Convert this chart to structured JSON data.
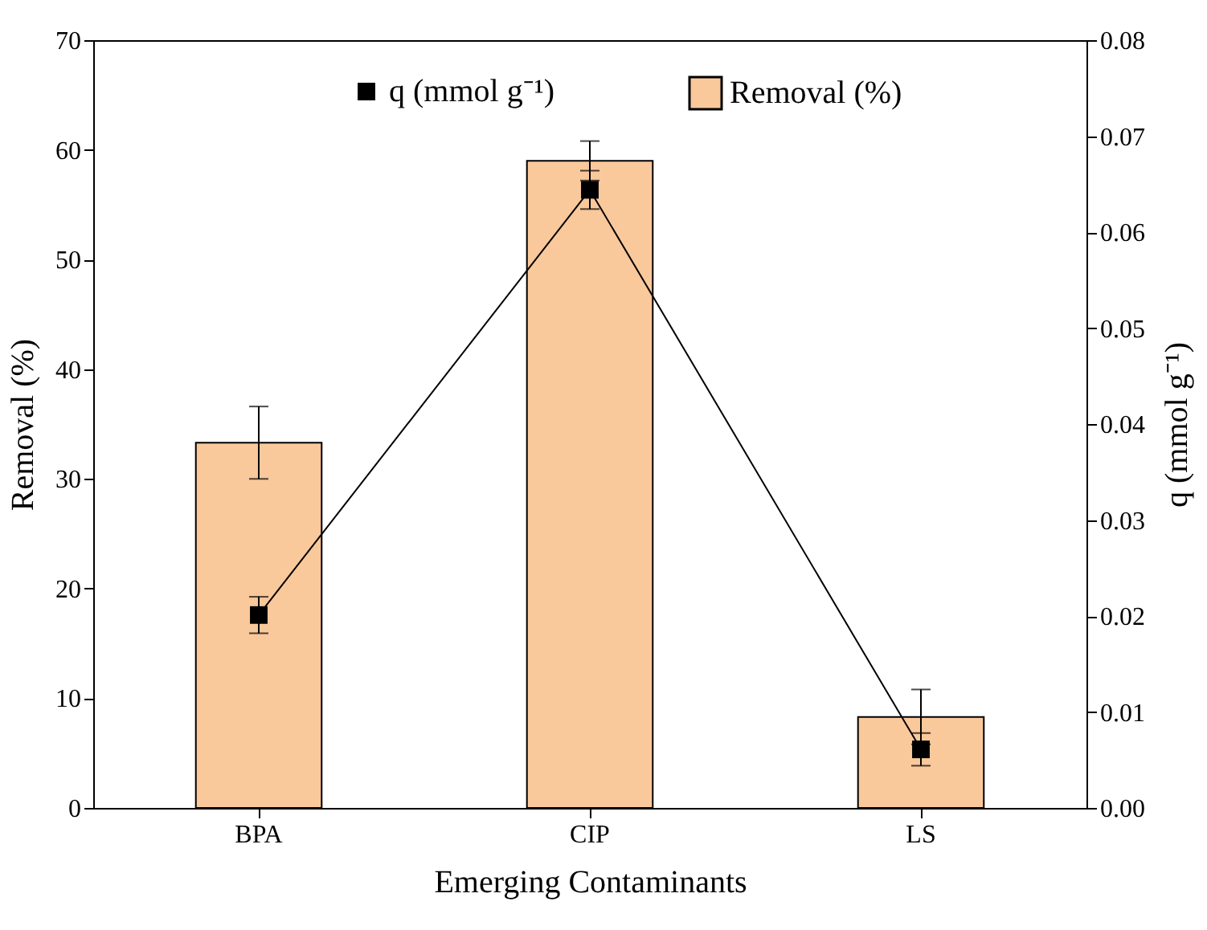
{
  "chart_data": {
    "type": "bar",
    "xlabel": "Emerging Contaminants",
    "ylabel": "Removal (%)",
    "y2label": "q (mmol g⁻¹)",
    "categories": [
      "BPA",
      "CIP",
      "LS"
    ],
    "series": [
      {
        "name": "Removal (%)",
        "color": "#f9c89b",
        "values": [
          33.3,
          59.0,
          8.3
        ],
        "errors": [
          3.3,
          1.8,
          2.5
        ]
      },
      {
        "name": "q (mmol g⁻¹)",
        "type": "line",
        "axis": "y2",
        "color": "#000000",
        "values": [
          0.0201,
          0.0644,
          0.0061
        ],
        "errors": [
          0.0019,
          0.002,
          0.0017
        ]
      }
    ],
    "marker": "square",
    "line_style": "solid",
    "legend": "top",
    "grid": false,
    "ylim": [
      0,
      70
    ],
    "yticks": [
      0,
      10,
      20,
      30,
      40,
      50,
      60,
      70
    ],
    "y2lim": [
      0,
      0.08
    ],
    "y2ticks": [
      {
        "value": 0,
        "label": "0.00"
      },
      0.01,
      0.02,
      0.03,
      0.04,
      0.05,
      0.06,
      0.07,
      0.08
    ]
  }
}
